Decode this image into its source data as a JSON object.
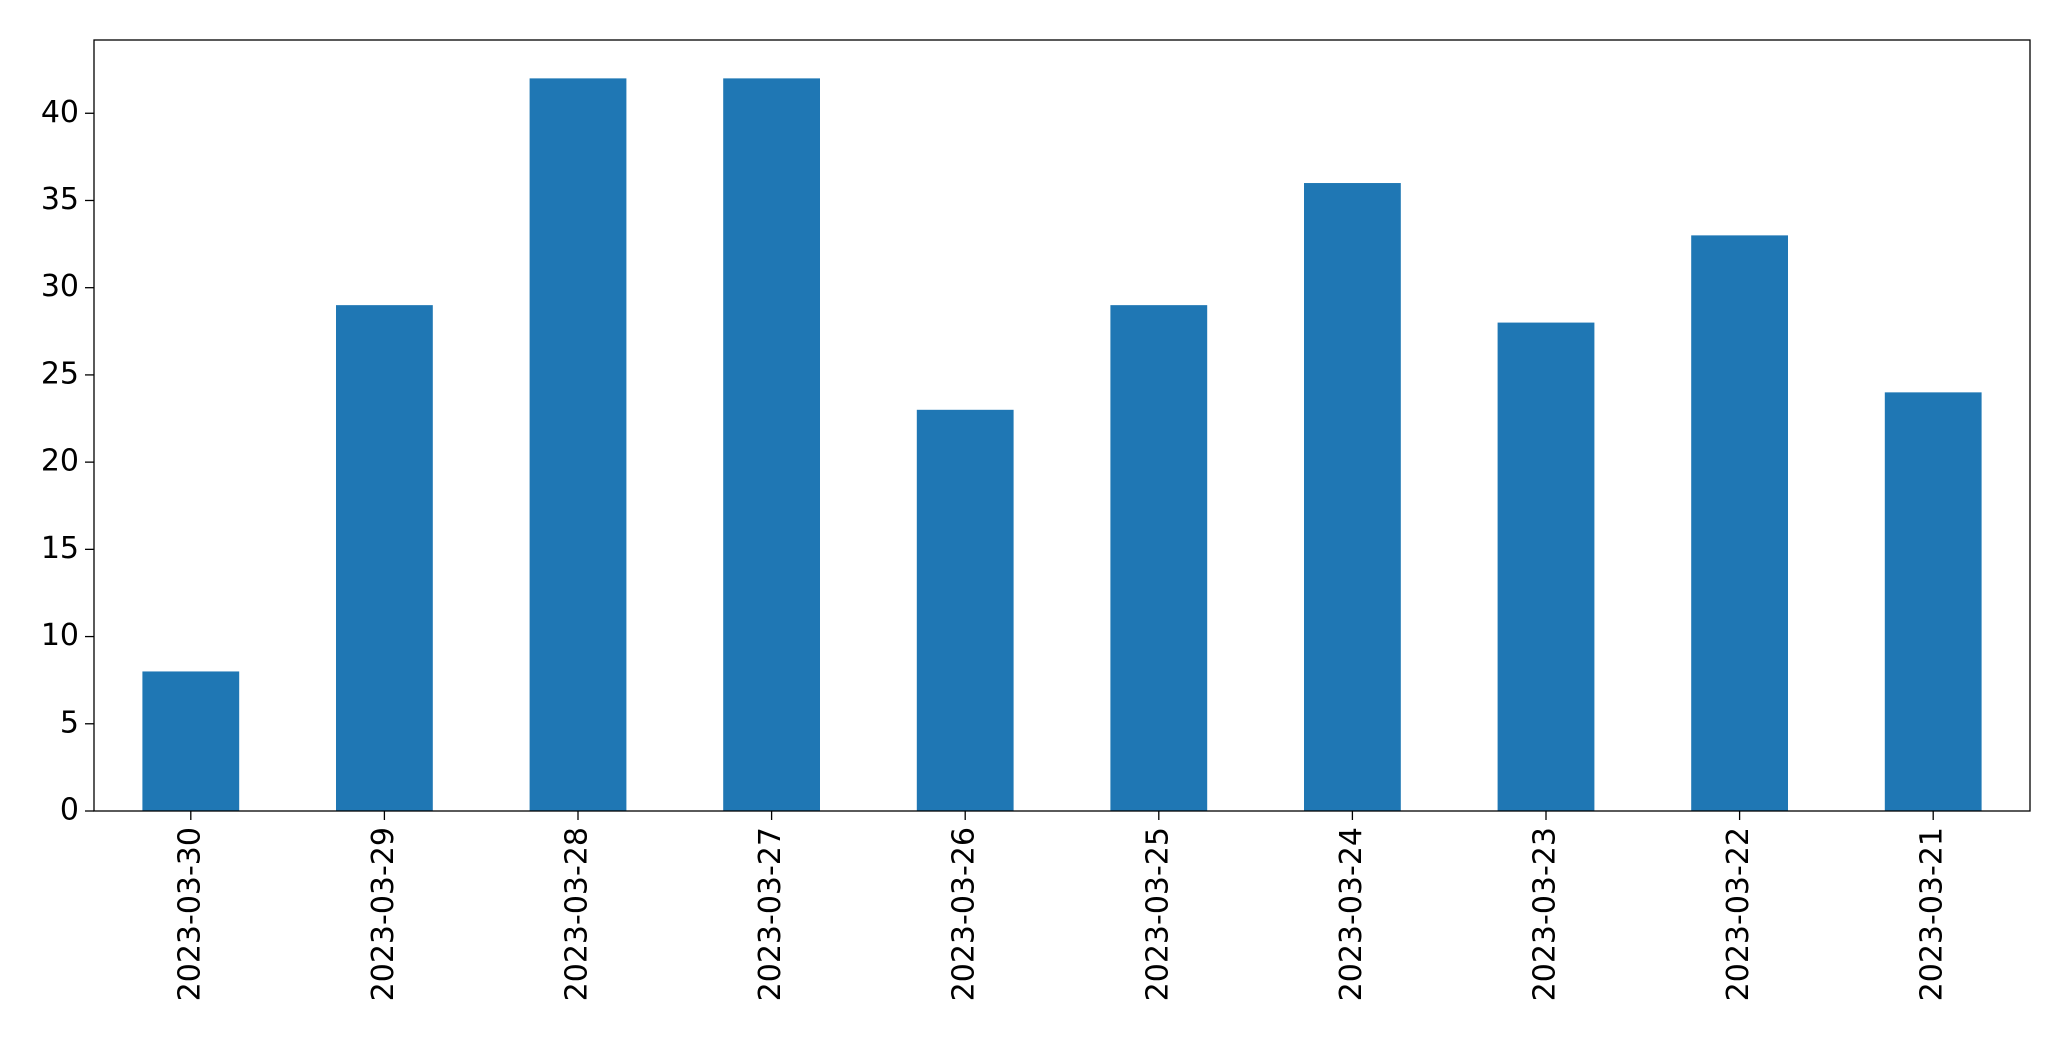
{
  "chart_data": {
    "type": "bar",
    "categories": [
      "2023-03-30",
      "2023-03-29",
      "2023-03-28",
      "2023-03-27",
      "2023-03-26",
      "2023-03-25",
      "2023-03-24",
      "2023-03-23",
      "2023-03-22",
      "2023-03-21"
    ],
    "values": [
      8,
      29,
      42,
      42,
      23,
      29,
      36,
      28,
      33,
      24
    ],
    "color": "#1f77b4",
    "ylim": [
      0,
      44.2
    ],
    "yticks": [
      0,
      5,
      10,
      15,
      20,
      25,
      30,
      35,
      40
    ],
    "grid": false
  }
}
